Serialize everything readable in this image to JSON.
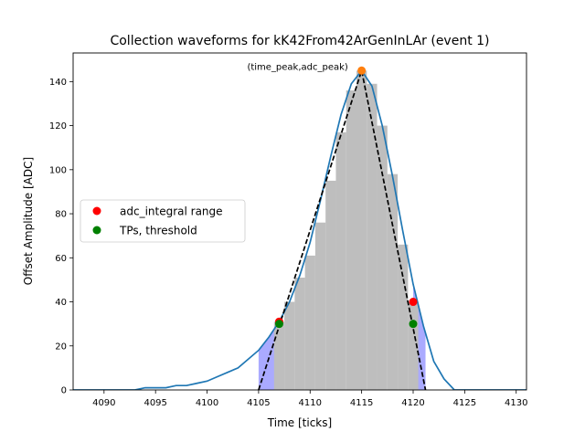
{
  "chart_data": {
    "type": "line",
    "title": "Collection waveforms for kK42From42ArGenInLAr (event 1)",
    "xlabel": "Time [ticks]",
    "ylabel": "Offset Amplitude [ADC]",
    "xlim": [
      4087,
      4131
    ],
    "ylim": [
      0,
      153
    ],
    "xticks": [
      4090,
      4095,
      4100,
      4105,
      4110,
      4115,
      4120,
      4125,
      4130
    ],
    "yticks": [
      0,
      20,
      40,
      60,
      80,
      100,
      120,
      140
    ],
    "grid": false,
    "legend_position": "center-left",
    "legend": [
      {
        "label": "adc_integral range",
        "color": "#ff0000",
        "marker": "circle"
      },
      {
        "label": "TPs, threshold",
        "color": "#008000",
        "marker": "circle"
      }
    ],
    "waveform": {
      "color": "#1f77b4",
      "x": [
        4087,
        4088,
        4089,
        4090,
        4091,
        4092,
        4093,
        4094,
        4095,
        4096,
        4097,
        4098,
        4099,
        4100,
        4101,
        4102,
        4103,
        4104,
        4105,
        4106,
        4107,
        4108,
        4109,
        4110,
        4111,
        4112,
        4113,
        4114,
        4115,
        4116,
        4117,
        4118,
        4119,
        4120,
        4121,
        4122,
        4123,
        4124,
        4125,
        4126,
        4127,
        4128,
        4129,
        4130,
        4131
      ],
      "y": [
        0,
        0,
        0,
        0,
        0,
        0,
        0,
        1,
        1,
        1,
        2,
        2,
        3,
        4,
        6,
        8,
        10,
        14,
        18,
        24,
        31,
        40,
        52,
        67,
        86,
        106,
        125,
        139,
        145,
        138,
        120,
        97,
        72,
        48,
        29,
        13,
        5,
        0,
        0,
        0,
        0,
        0,
        0,
        0,
        0
      ]
    },
    "histogram": {
      "color": "#bebebe",
      "bins": [
        {
          "x0": 4106.5,
          "x1": 4107.5,
          "value": 31
        },
        {
          "x0": 4107.5,
          "x1": 4108.5,
          "value": 40
        },
        {
          "x0": 4108.5,
          "x1": 4109.5,
          "value": 51
        },
        {
          "x0": 4109.5,
          "x1": 4110.5,
          "value": 61
        },
        {
          "x0": 4110.5,
          "x1": 4111.5,
          "value": 76
        },
        {
          "x0": 4111.5,
          "x1": 4112.5,
          "value": 95
        },
        {
          "x0": 4112.5,
          "x1": 4113.5,
          "value": 117
        },
        {
          "x0": 4113.5,
          "x1": 4114.5,
          "value": 136
        },
        {
          "x0": 4114.5,
          "x1": 4115.5,
          "value": 145
        },
        {
          "x0": 4115.5,
          "x1": 4116.5,
          "value": 139
        },
        {
          "x0": 4116.5,
          "x1": 4117.5,
          "value": 120
        },
        {
          "x0": 4117.5,
          "x1": 4118.5,
          "value": 98
        },
        {
          "x0": 4118.5,
          "x1": 4119.5,
          "value": 66
        },
        {
          "x0": 4119.5,
          "x1": 4120.5,
          "value": 40
        }
      ]
    },
    "shaded_regions": {
      "color": "#aaaaff",
      "left": {
        "x0": 4105,
        "x1": 4107
      },
      "right": {
        "x0": 4120,
        "x1": 4121.2
      }
    },
    "triangle": {
      "color": "#000000",
      "style": "dashed",
      "points": [
        [
          4105,
          0
        ],
        [
          4115,
          145
        ],
        [
          4121.2,
          0
        ]
      ]
    },
    "adc_integral_range_points": [
      [
        4107,
        31
      ],
      [
        4120,
        40
      ]
    ],
    "tp_threshold_points": [
      [
        4107,
        30
      ],
      [
        4120,
        30
      ]
    ],
    "peak": {
      "x": 4115,
      "y": 145,
      "color": "#ff7f0e"
    },
    "annotation": {
      "text": "(time_peak,adc_peak)",
      "x": 4115,
      "y": 145
    }
  }
}
